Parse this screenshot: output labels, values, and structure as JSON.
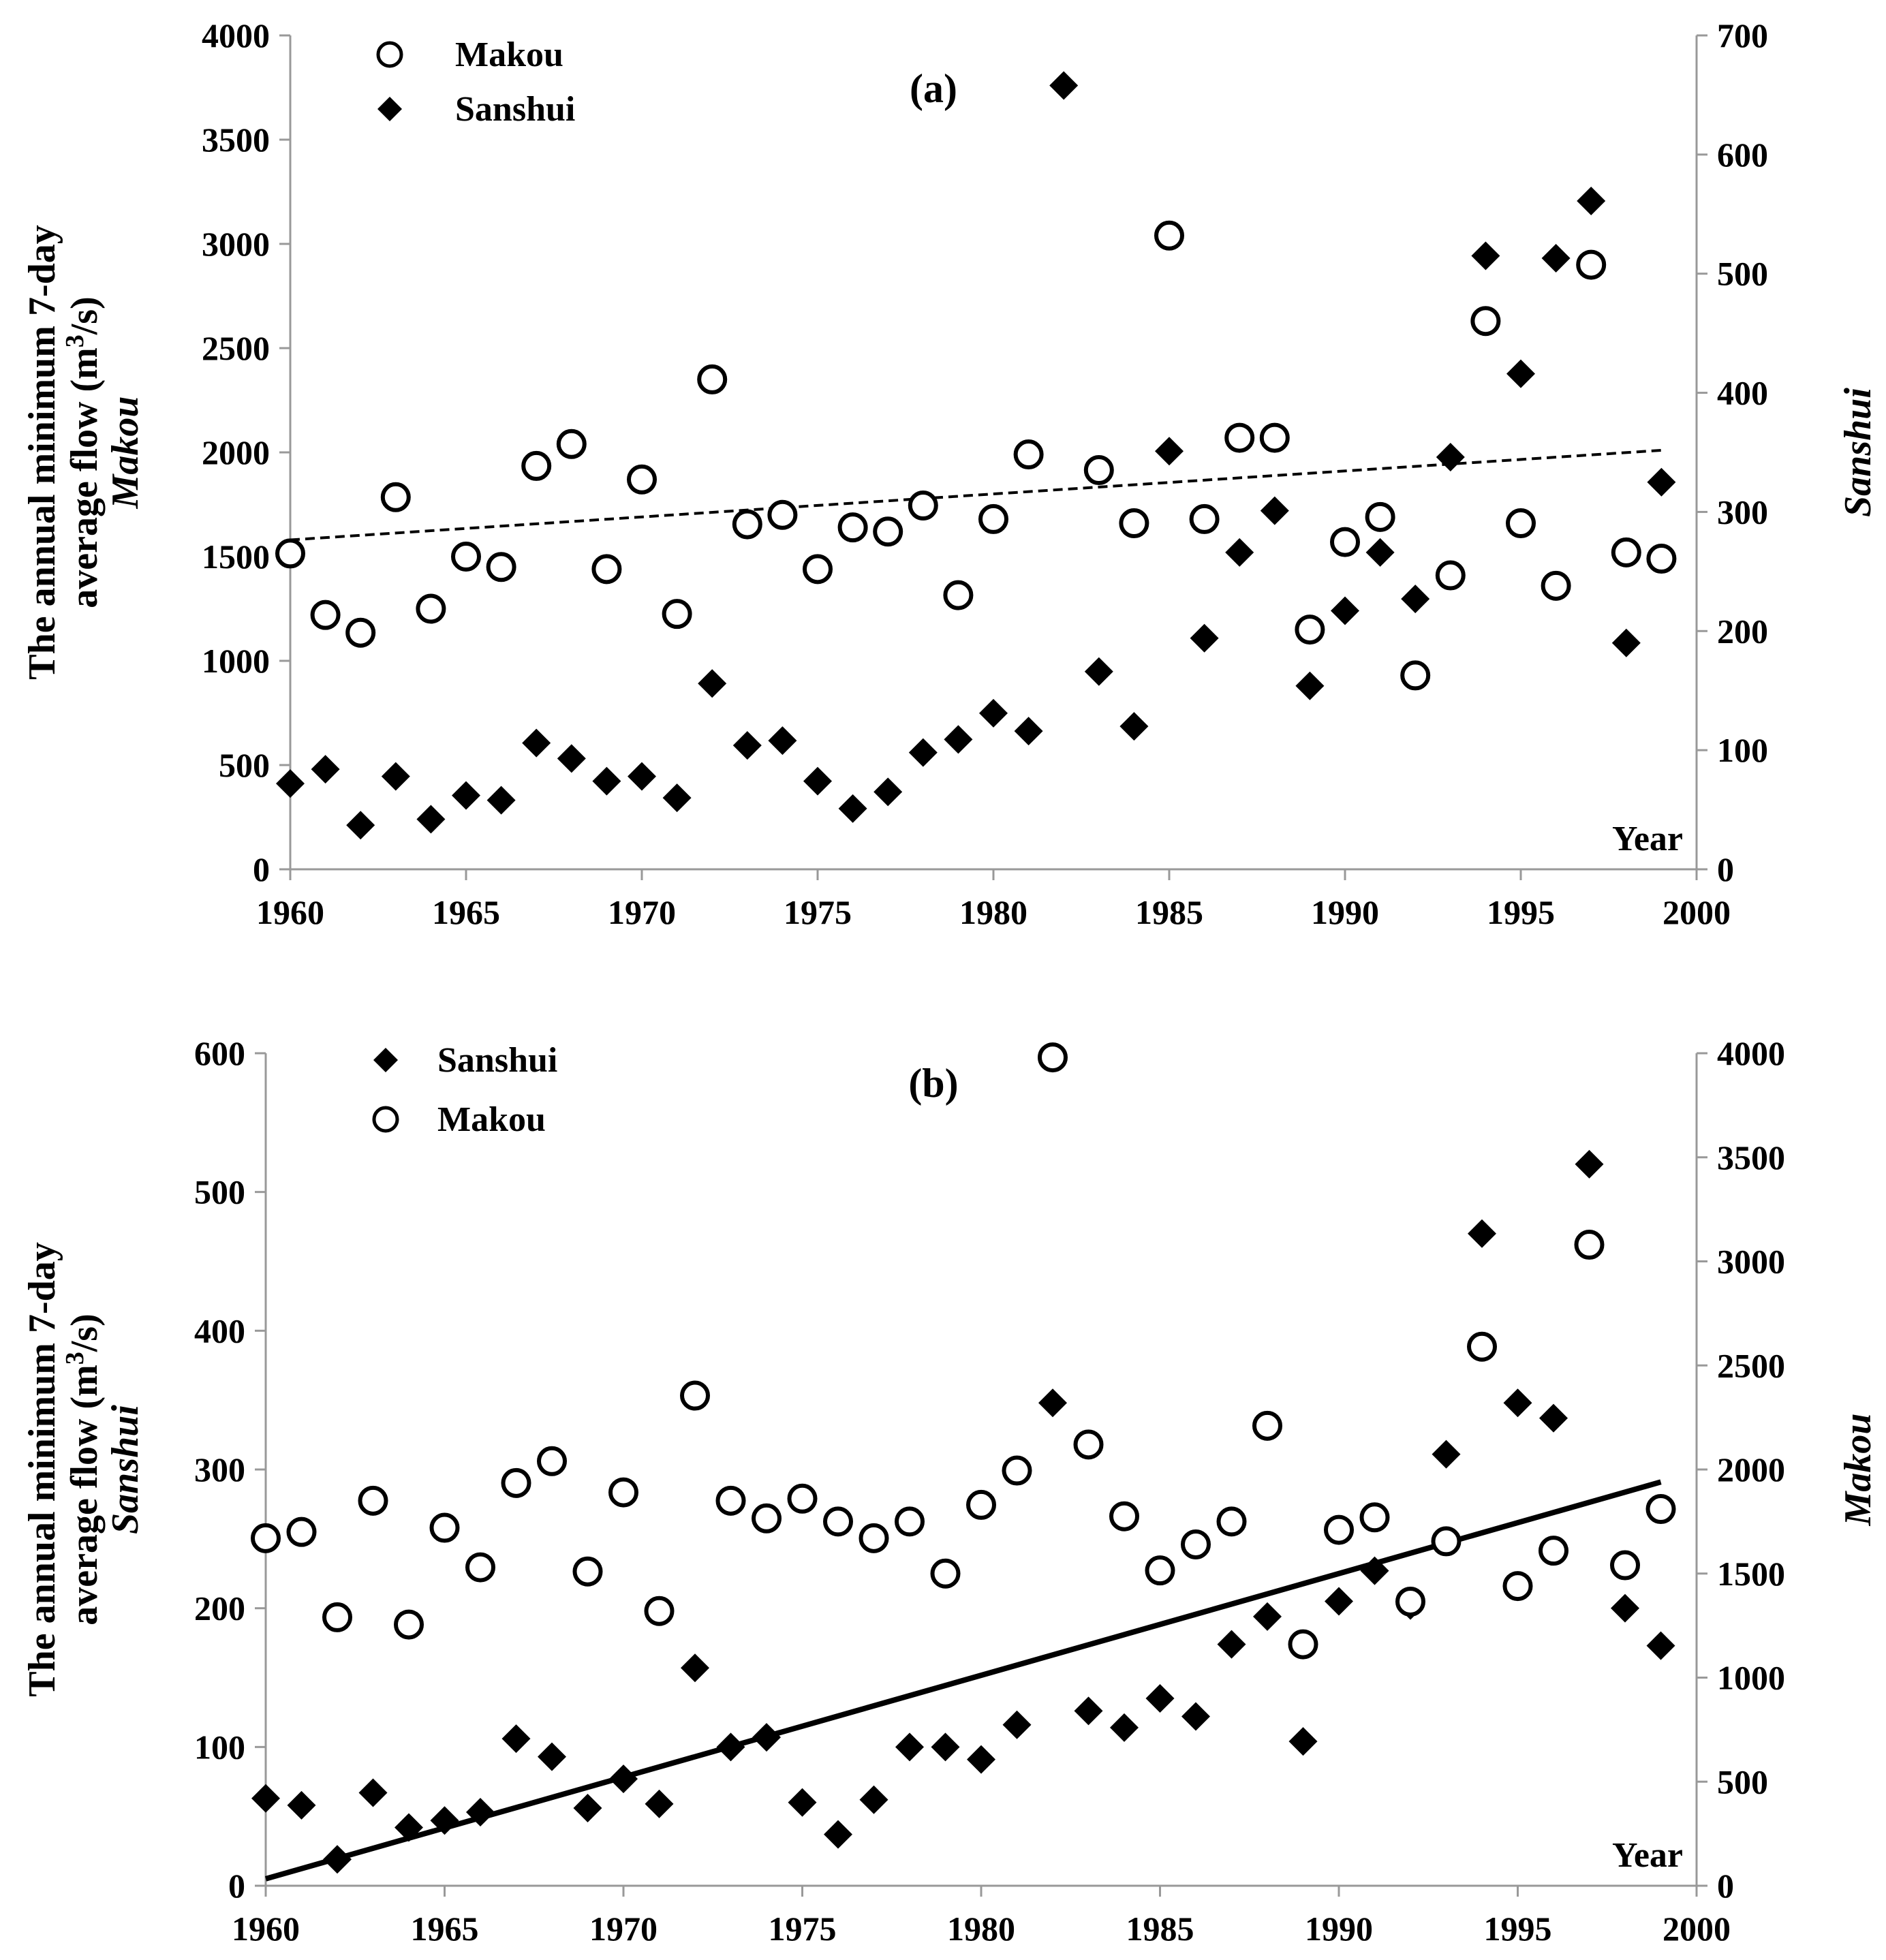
{
  "figure": {
    "ylabel_line1": "The annual minimum  7-day",
    "ylabel_line2_prefix": "average flow (m",
    "ylabel_line2_sup": "3",
    "ylabel_line2_suffix": "/s)"
  },
  "chart_data": [
    {
      "type": "scatter",
      "panel_label": "(a)",
      "x_axis_label": "Year",
      "xlim": [
        1960,
        2000
      ],
      "xticks": [
        1960,
        1965,
        1970,
        1975,
        1980,
        1985,
        1990,
        1995,
        2000
      ],
      "left_axis": {
        "station": "Makou",
        "ylim": [
          0,
          4000
        ],
        "ticks": [
          0,
          500,
          1000,
          1500,
          2000,
          2500,
          3000,
          3500,
          4000
        ]
      },
      "right_axis": {
        "station": "Sanshui",
        "ylim": [
          0,
          700
        ],
        "ticks": [
          0,
          100,
          200,
          300,
          400,
          500,
          600,
          700
        ]
      },
      "legend": [
        {
          "name": "Makou",
          "marker": "circle"
        },
        {
          "name": "Sanshui",
          "marker": "diamond"
        }
      ],
      "series": [
        {
          "name": "Makou",
          "axis": "left",
          "marker": "circle",
          "x": [
            1960,
            1961,
            1962,
            1963,
            1964,
            1965,
            1966,
            1967,
            1968,
            1969,
            1970,
            1971,
            1972,
            1973,
            1974,
            1975,
            1976,
            1977,
            1978,
            1979,
            1980,
            1981,
            1983,
            1984,
            1985,
            1986,
            1987,
            1988,
            1989,
            1990,
            1991,
            1992,
            1993,
            1994,
            1995,
            1996,
            1997,
            1998,
            1999
          ],
          "values": [
            1515,
            1220,
            1135,
            1785,
            1250,
            1500,
            1450,
            1935,
            2040,
            1440,
            1870,
            1225,
            2350,
            1655,
            1700,
            1440,
            1640,
            1620,
            1745,
            1315,
            1680,
            1990,
            1915,
            1660,
            3040,
            1680,
            2070,
            2070,
            1150,
            1570,
            1690,
            930,
            1410,
            2630,
            1660,
            1360,
            2900,
            1520,
            1490
          ]
        },
        {
          "name": "Sanshui",
          "axis": "right",
          "marker": "diamond",
          "x": [
            1960,
            1961,
            1962,
            1963,
            1964,
            1965,
            1966,
            1967,
            1968,
            1969,
            1970,
            1971,
            1972,
            1973,
            1974,
            1975,
            1976,
            1977,
            1978,
            1979,
            1980,
            1981,
            1982,
            1983,
            1984,
            1985,
            1986,
            1987,
            1988,
            1989,
            1990,
            1991,
            1992,
            1993,
            1994,
            1995,
            1996,
            1997,
            1998,
            1999
          ],
          "values": [
            72,
            84,
            37,
            78,
            42,
            62,
            58,
            106,
            93,
            74,
            78,
            60,
            156,
            104,
            108,
            74,
            51,
            65,
            98,
            109,
            131,
            116,
            658,
            166,
            120,
            351,
            194,
            266,
            301,
            154,
            217,
            266,
            227,
            346,
            515,
            416,
            513,
            561,
            190,
            325
          ]
        }
      ],
      "trendline": {
        "series": "Makou",
        "style": "dashed",
        "x": [
          1960,
          1999
        ],
        "y": [
          1580,
          2010
        ]
      }
    },
    {
      "type": "scatter",
      "panel_label": "(b)",
      "x_axis_label": "Year",
      "xlim": [
        1960,
        2000
      ],
      "xticks": [
        1960,
        1965,
        1970,
        1975,
        1980,
        1985,
        1990,
        1995,
        2000
      ],
      "left_axis": {
        "station": "Sanshui",
        "ylim": [
          0,
          600
        ],
        "ticks": [
          0,
          100,
          200,
          300,
          400,
          500,
          600
        ]
      },
      "right_axis": {
        "station": "Makou",
        "ylim": [
          0,
          4000
        ],
        "ticks": [
          0,
          500,
          1000,
          1500,
          2000,
          2500,
          3000,
          3500,
          4000
        ]
      },
      "legend": [
        {
          "name": "Sanshui",
          "marker": "diamond"
        },
        {
          "name": "Makou",
          "marker": "circle"
        }
      ],
      "series": [
        {
          "name": "Sanshui",
          "axis": "left",
          "marker": "diamond",
          "x": [
            1960,
            1961,
            1962,
            1963,
            1964,
            1965,
            1966,
            1967,
            1968,
            1969,
            1970,
            1971,
            1972,
            1973,
            1974,
            1975,
            1976,
            1977,
            1978,
            1979,
            1980,
            1981,
            1982,
            1983,
            1984,
            1985,
            1986,
            1987,
            1988,
            1989,
            1990,
            1991,
            1992,
            1993,
            1994,
            1995,
            1996,
            1997,
            1998,
            1999
          ],
          "values": [
            63,
            58,
            19,
            67,
            42,
            47,
            53,
            106,
            93,
            56,
            77,
            59,
            157,
            100,
            107,
            60,
            37,
            62,
            100,
            100,
            91,
            116,
            348,
            126,
            114,
            135,
            122,
            174,
            194,
            104,
            205,
            227,
            202,
            311,
            470,
            348,
            337,
            520,
            200,
            173
          ]
        },
        {
          "name": "Makou",
          "axis": "right",
          "marker": "circle",
          "x": [
            1960,
            1961,
            1962,
            1963,
            1964,
            1965,
            1966,
            1967,
            1968,
            1969,
            1970,
            1971,
            1972,
            1973,
            1974,
            1975,
            1976,
            1977,
            1978,
            1979,
            1980,
            1981,
            1982,
            1983,
            1984,
            1985,
            1986,
            1987,
            1988,
            1989,
            1990,
            1991,
            1992,
            1993,
            1994,
            1995,
            1996,
            1997,
            1998,
            1999
          ],
          "values": [
            1670,
            1700,
            1290,
            1850,
            1255,
            1720,
            1530,
            1935,
            2040,
            1510,
            1890,
            1320,
            2355,
            1850,
            1765,
            1860,
            1750,
            1670,
            1750,
            1500,
            1830,
            1995,
            3980,
            2120,
            1775,
            1515,
            1640,
            1750,
            2210,
            1160,
            1710,
            1770,
            1365,
            1655,
            2590,
            1440,
            1610,
            3080,
            1540,
            1810
          ]
        }
      ],
      "trendline": {
        "series": "Sanshui",
        "style": "solid",
        "x": [
          1960,
          1999
        ],
        "y": [
          5,
          291
        ]
      }
    }
  ]
}
